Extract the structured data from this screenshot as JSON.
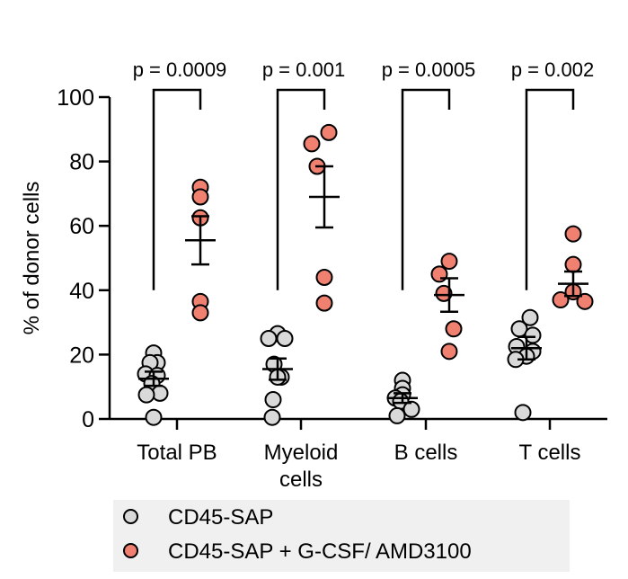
{
  "chart_data": {
    "type": "scatter",
    "ylabel": "% of donor cells",
    "ylim": [
      0,
      100
    ],
    "yticks": [
      "0",
      "20",
      "40",
      "60",
      "80",
      "100"
    ],
    "categories": [
      "Total PB",
      "Myeloid cells",
      "B cells",
      "T cells"
    ],
    "category_labels": [
      [
        "Total PB"
      ],
      [
        "Myeloid",
        "cells"
      ],
      [
        "B cells"
      ],
      [
        "T cells"
      ]
    ],
    "series": [
      {
        "name": "CD45-SAP",
        "color": "#d9d9d9",
        "points": [
          [
            20.5,
            17.5,
            17.5,
            14,
            13.5,
            11,
            8,
            7.5,
            0.5
          ],
          [
            26.5,
            25,
            25,
            17,
            13,
            13,
            6,
            0.5
          ],
          [
            12,
            9.5,
            7.5,
            6.5,
            5.5,
            3,
            1
          ],
          [
            31.5,
            28,
            26,
            22.5,
            21,
            19.5,
            18.5,
            2
          ]
        ],
        "mean": [
          12.5,
          15.5,
          6.5,
          22
        ],
        "sem": [
          2.2,
          3.3,
          1.5,
          3.5
        ]
      },
      {
        "name": "CD45-SAP + G-CSF/ AMD3100",
        "color": "#f08070",
        "points": [
          [
            72,
            69,
            62.5,
            36.5,
            33
          ],
          [
            89,
            85.5,
            78.5,
            44,
            36
          ],
          [
            49,
            45,
            39,
            28,
            21
          ],
          [
            57.5,
            48,
            39.5,
            37,
            36.5
          ]
        ],
        "mean": [
          55.5,
          69,
          38.5,
          42
        ],
        "sem": [
          7.5,
          9.5,
          5.2,
          3.8
        ]
      }
    ],
    "annotations": [
      "p = 0.0009",
      "p = 0.001",
      "p = 0.0005",
      "p = 0.002"
    ],
    "legend_position": "bottom",
    "grid": false
  }
}
